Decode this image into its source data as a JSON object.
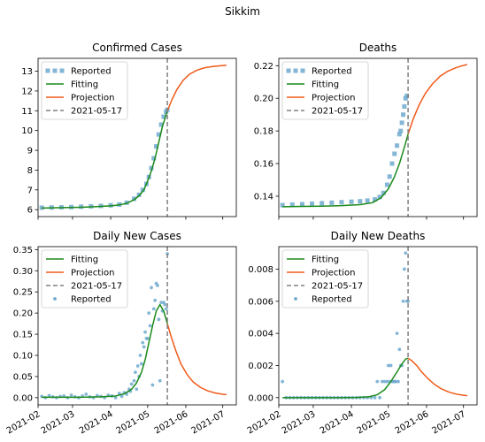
{
  "figure_title": "Sikkim",
  "date_ticks": [
    "2021-02",
    "2021-03",
    "2021-04",
    "2021-05",
    "2021-06",
    "2021-07"
  ],
  "colors": {
    "reported": "#6ea9cf",
    "fitting": "#1a8a1a",
    "projection": "#f05a1a",
    "vline": "#808080"
  },
  "chart_data": [
    {
      "type": "line",
      "title": "Confirmed Cases",
      "ylim": [
        5.65,
        13.65
      ],
      "yticks": [
        6,
        7,
        8,
        9,
        10,
        11,
        12,
        13
      ],
      "ytick_labels": [
        "6",
        "7",
        "8",
        "9",
        "10",
        "11",
        "12",
        "13"
      ],
      "vline_date": "2021-05-17",
      "legend": {
        "placement": "upper-left",
        "entries": [
          {
            "label": "Reported",
            "kind": "square"
          },
          {
            "label": "Fitting",
            "kind": "line-fit"
          },
          {
            "label": "Projection",
            "kind": "line-proj"
          },
          {
            "label": "2021-05-17",
            "kind": "dashed"
          }
        ]
      },
      "reported_marker": "square",
      "reported": {
        "x": [
          "2021-02-04",
          "2021-02-12",
          "2021-02-20",
          "2021-02-28",
          "2021-03-08",
          "2021-03-16",
          "2021-03-24",
          "2021-04-01",
          "2021-04-08",
          "2021-04-14",
          "2021-04-20",
          "2021-04-24",
          "2021-04-27",
          "2021-04-30",
          "2021-05-02",
          "2021-05-04",
          "2021-05-06",
          "2021-05-08",
          "2021-05-10",
          "2021-05-12",
          "2021-05-14",
          "2021-05-16",
          "2021-05-17"
        ],
        "y": [
          6.1,
          6.11,
          6.12,
          6.13,
          6.15,
          6.17,
          6.19,
          6.22,
          6.26,
          6.35,
          6.55,
          6.75,
          7.0,
          7.3,
          7.65,
          8.1,
          8.6,
          9.2,
          9.8,
          10.3,
          10.7,
          10.95,
          11.05
        ]
      },
      "fitting": {
        "x": [
          "2021-02-04",
          "2021-02-20",
          "2021-03-08",
          "2021-03-20",
          "2021-04-01",
          "2021-04-08",
          "2021-04-14",
          "2021-04-20",
          "2021-04-24",
          "2021-04-28",
          "2021-05-01",
          "2021-05-04",
          "2021-05-07",
          "2021-05-10",
          "2021-05-13",
          "2021-05-17"
        ],
        "y": [
          6.08,
          6.1,
          6.12,
          6.15,
          6.19,
          6.24,
          6.32,
          6.5,
          6.7,
          7.0,
          7.45,
          7.95,
          8.6,
          9.4,
          10.2,
          11.0
        ]
      },
      "projection": {
        "x": [
          "2021-05-17",
          "2021-05-21",
          "2021-05-25",
          "2021-05-30",
          "2021-06-04",
          "2021-06-10",
          "2021-06-16",
          "2021-06-22",
          "2021-06-28",
          "2021-07-04"
        ],
        "y": [
          11.0,
          11.6,
          12.1,
          12.55,
          12.85,
          13.05,
          13.17,
          13.23,
          13.27,
          13.3
        ]
      }
    },
    {
      "type": "line",
      "title": "Deaths",
      "ylim": [
        0.1275,
        0.2245
      ],
      "yticks": [
        0.14,
        0.16,
        0.18,
        0.2,
        0.22
      ],
      "ytick_labels": [
        "0.14",
        "0.16",
        "0.18",
        "0.20",
        "0.22"
      ],
      "vline_date": "2021-05-17",
      "legend": {
        "placement": "upper-left",
        "entries": [
          {
            "label": "Reported",
            "kind": "square"
          },
          {
            "label": "Fitting",
            "kind": "line-fit"
          },
          {
            "label": "Projection",
            "kind": "line-proj"
          },
          {
            "label": "2021-05-17",
            "kind": "dashed"
          }
        ]
      },
      "reported_marker": "square",
      "reported": {
        "x": [
          "2021-02-04",
          "2021-02-12",
          "2021-02-20",
          "2021-02-28",
          "2021-03-08",
          "2021-03-16",
          "2021-03-24",
          "2021-04-01",
          "2021-04-08",
          "2021-04-14",
          "2021-04-20",
          "2021-04-24",
          "2021-04-27",
          "2021-04-30",
          "2021-05-02",
          "2021-05-04",
          "2021-05-06",
          "2021-05-08",
          "2021-05-10",
          "2021-05-11",
          "2021-05-12",
          "2021-05-13",
          "2021-05-14",
          "2021-05-15",
          "2021-05-16"
        ],
        "y": [
          0.1345,
          0.1348,
          0.1351,
          0.1354,
          0.1357,
          0.136,
          0.1363,
          0.1366,
          0.1369,
          0.1373,
          0.138,
          0.1395,
          0.142,
          0.147,
          0.152,
          0.16,
          0.166,
          0.171,
          0.178,
          0.18,
          0.185,
          0.19,
          0.195,
          0.2,
          0.2015
        ]
      },
      "fitting": {
        "x": [
          "2021-02-04",
          "2021-02-20",
          "2021-03-08",
          "2021-03-24",
          "2021-04-08",
          "2021-04-18",
          "2021-04-25",
          "2021-05-01",
          "2021-05-06",
          "2021-05-10",
          "2021-05-14",
          "2021-05-17"
        ],
        "y": [
          0.1335,
          0.1337,
          0.1339,
          0.1342,
          0.1348,
          0.136,
          0.139,
          0.1445,
          0.152,
          0.16,
          0.17,
          0.178
        ]
      },
      "projection": {
        "x": [
          "2021-05-17",
          "2021-05-21",
          "2021-05-26",
          "2021-05-31",
          "2021-06-06",
          "2021-06-12",
          "2021-06-18",
          "2021-06-24",
          "2021-06-30",
          "2021-07-04"
        ],
        "y": [
          0.178,
          0.187,
          0.196,
          0.203,
          0.209,
          0.2135,
          0.2165,
          0.2185,
          0.22,
          0.2207
        ]
      }
    },
    {
      "type": "line",
      "title": "Daily New Cases",
      "ylim": [
        -0.017,
        0.357
      ],
      "yticks": [
        0.0,
        0.05,
        0.1,
        0.15,
        0.2,
        0.25,
        0.3,
        0.35
      ],
      "ytick_labels": [
        "0.00",
        "0.05",
        "0.10",
        "0.15",
        "0.20",
        "0.25",
        "0.30",
        "0.35"
      ],
      "vline_date": "2021-05-17",
      "legend": {
        "placement": "upper-left",
        "entries": [
          {
            "label": "Fitting",
            "kind": "line-fit"
          },
          {
            "label": "Projection",
            "kind": "line-proj"
          },
          {
            "label": "2021-05-17",
            "kind": "dashed"
          },
          {
            "label": "Reported",
            "kind": "dot"
          }
        ]
      },
      "reported_marker": "dot",
      "reported": {
        "x": [
          "2021-02-04",
          "2021-02-07",
          "2021-02-10",
          "2021-02-13",
          "2021-02-16",
          "2021-02-19",
          "2021-02-22",
          "2021-02-25",
          "2021-02-28",
          "2021-03-03",
          "2021-03-06",
          "2021-03-09",
          "2021-03-12",
          "2021-03-15",
          "2021-03-18",
          "2021-03-21",
          "2021-03-24",
          "2021-03-27",
          "2021-03-30",
          "2021-04-02",
          "2021-04-05",
          "2021-04-08",
          "2021-04-10",
          "2021-04-12",
          "2021-04-14",
          "2021-04-16",
          "2021-04-17",
          "2021-04-18",
          "2021-04-20",
          "2021-04-21",
          "2021-04-22",
          "2021-04-23",
          "2021-04-24",
          "2021-04-25",
          "2021-04-26",
          "2021-04-27",
          "2021-04-28",
          "2021-04-29",
          "2021-04-30",
          "2021-05-01",
          "2021-05-02",
          "2021-05-03",
          "2021-05-04",
          "2021-05-05",
          "2021-05-06",
          "2021-05-07",
          "2021-05-08",
          "2021-05-09",
          "2021-05-10",
          "2021-05-11",
          "2021-05-12",
          "2021-05-13",
          "2021-05-14",
          "2021-05-15",
          "2021-05-16",
          "2021-05-17"
        ],
        "y": [
          0.003,
          0.0,
          0.005,
          0.002,
          0.0,
          0.003,
          0.004,
          0.0,
          0.006,
          0.002,
          0.0,
          0.004,
          0.008,
          0.002,
          0.0,
          0.005,
          0.003,
          0.0,
          0.006,
          0.004,
          0.0,
          0.01,
          0.003,
          0.012,
          0.008,
          0.02,
          0.015,
          0.032,
          0.04,
          0.06,
          0.02,
          0.075,
          0.05,
          0.1,
          0.08,
          0.13,
          0.12,
          0.155,
          0.14,
          0.14,
          0.2,
          0.17,
          0.26,
          0.03,
          0.21,
          0.23,
          0.27,
          0.265,
          0.185,
          0.04,
          0.225,
          0.205,
          0.225,
          0.22,
          0.21,
          0.34
        ]
      },
      "fitting": {
        "x": [
          "2021-02-04",
          "2021-02-20",
          "2021-03-08",
          "2021-03-24",
          "2021-04-05",
          "2021-04-12",
          "2021-04-18",
          "2021-04-22",
          "2021-04-26",
          "2021-04-29",
          "2021-05-02",
          "2021-05-05",
          "2021-05-08",
          "2021-05-11",
          "2021-05-14",
          "2021-05-17"
        ],
        "y": [
          0.001,
          0.001,
          0.001,
          0.002,
          0.004,
          0.009,
          0.02,
          0.035,
          0.06,
          0.09,
          0.13,
          0.17,
          0.205,
          0.22,
          0.205,
          0.175
        ]
      },
      "projection": {
        "x": [
          "2021-05-17",
          "2021-05-20",
          "2021-05-24",
          "2021-05-28",
          "2021-06-02",
          "2021-06-07",
          "2021-06-13",
          "2021-06-19",
          "2021-06-25",
          "2021-07-01",
          "2021-07-04"
        ],
        "y": [
          0.175,
          0.145,
          0.11,
          0.08,
          0.055,
          0.037,
          0.024,
          0.016,
          0.011,
          0.008,
          0.007
        ]
      }
    },
    {
      "type": "line",
      "title": "Daily New Deaths",
      "ylim": [
        -0.00045,
        0.0094
      ],
      "yticks": [
        0.0,
        0.002,
        0.004,
        0.006,
        0.008
      ],
      "ytick_labels": [
        "0.000",
        "0.002",
        "0.004",
        "0.006",
        "0.008"
      ],
      "vline_date": "2021-05-17",
      "legend": {
        "placement": "upper-left",
        "entries": [
          {
            "label": "Fitting",
            "kind": "line-fit"
          },
          {
            "label": "Projection",
            "kind": "line-proj"
          },
          {
            "label": "2021-05-17",
            "kind": "dashed"
          },
          {
            "label": "Reported",
            "kind": "dot"
          }
        ]
      },
      "reported_marker": "dot",
      "reported": {
        "x": [
          "2021-02-04",
          "2021-02-07",
          "2021-02-10",
          "2021-02-13",
          "2021-02-16",
          "2021-02-19",
          "2021-02-22",
          "2021-02-25",
          "2021-02-28",
          "2021-03-03",
          "2021-03-06",
          "2021-03-09",
          "2021-03-12",
          "2021-03-15",
          "2021-03-18",
          "2021-03-21",
          "2021-03-24",
          "2021-03-27",
          "2021-03-30",
          "2021-04-02",
          "2021-04-05",
          "2021-04-08",
          "2021-04-11",
          "2021-04-14",
          "2021-04-17",
          "2021-04-20",
          "2021-04-22",
          "2021-04-24",
          "2021-04-26",
          "2021-04-28",
          "2021-04-30",
          "2021-05-01",
          "2021-05-02",
          "2021-05-03",
          "2021-05-04",
          "2021-05-05",
          "2021-05-06",
          "2021-05-07",
          "2021-05-08",
          "2021-05-09",
          "2021-05-10",
          "2021-05-11",
          "2021-05-12",
          "2021-05-13",
          "2021-05-14",
          "2021-05-15",
          "2021-05-16",
          "2021-05-17"
        ],
        "y": [
          0.001,
          0.0,
          0.0,
          0.0,
          0.0,
          0.0,
          0.0,
          0.0,
          0.0,
          0.0,
          0.0,
          0.0,
          0.0,
          0.0,
          0.0,
          0.0,
          0.0,
          0.0,
          0.0,
          0.0,
          0.0,
          0.0,
          0.0,
          0.0,
          0.0,
          0.0,
          0.001,
          0.0,
          0.001,
          0.001,
          0.001,
          0.002,
          0.001,
          0.002,
          0.001,
          0.001,
          0.001,
          0.001,
          0.004,
          0.001,
          0.003,
          0.002,
          0.002,
          0.006,
          0.008,
          0.009,
          0.006,
          0.006
        ]
      },
      "fitting": {
        "x": [
          "2021-02-04",
          "2021-02-20",
          "2021-03-08",
          "2021-03-24",
          "2021-04-05",
          "2021-04-15",
          "2021-04-22",
          "2021-04-28",
          "2021-05-03",
          "2021-05-08",
          "2021-05-12",
          "2021-05-15",
          "2021-05-17"
        ],
        "y": [
          0.0,
          0.0,
          0.0,
          0.0,
          1e-05,
          5e-05,
          0.00018,
          0.0005,
          0.001,
          0.0016,
          0.0021,
          0.0024,
          0.00245
        ]
      },
      "projection": {
        "x": [
          "2021-05-17",
          "2021-05-20",
          "2021-05-24",
          "2021-05-28",
          "2021-06-02",
          "2021-06-07",
          "2021-06-13",
          "2021-06-19",
          "2021-06-25",
          "2021-07-01",
          "2021-07-04"
        ],
        "y": [
          0.00245,
          0.0023,
          0.002,
          0.0016,
          0.0012,
          0.00085,
          0.00055,
          0.00035,
          0.00022,
          0.00015,
          0.00012
        ]
      }
    }
  ]
}
